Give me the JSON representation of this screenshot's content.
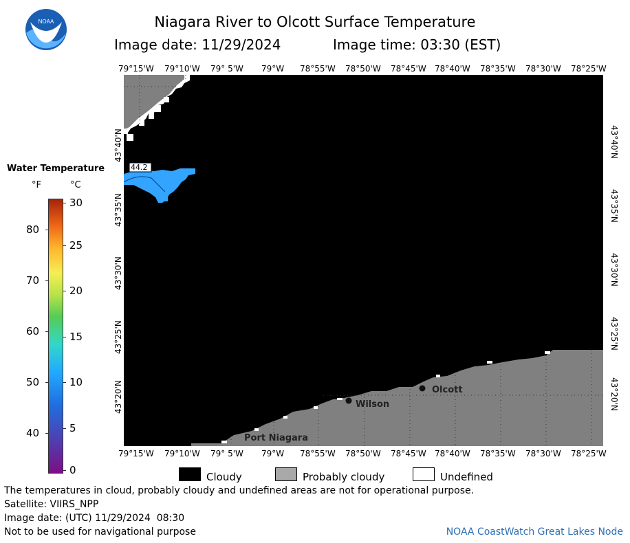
{
  "header": {
    "title": "Niagara River to Olcott Surface Temperature",
    "image_date_label": "Image date: 11/29/2024",
    "image_time_label": "Image time: 03:30 (EST)",
    "logo_text": "NOAA"
  },
  "map": {
    "lon_labels": [
      "79°15'W",
      "79°10'W",
      "79° 5'W",
      "79°W",
      "78°55'W",
      "78°50'W",
      "78°45'W",
      "78°40'W",
      "78°35'W",
      "78°30'W",
      "78°25'W"
    ],
    "lat_labels": [
      "43°40'N",
      "43°35'N",
      "43°30'N",
      "43°25'N",
      "43°20'N"
    ],
    "places": [
      {
        "name": "Olcott"
      },
      {
        "name": "Wilson"
      },
      {
        "name": "Port Niagara"
      }
    ],
    "temperature_label": "44.2",
    "colors": {
      "cloudy": "#000000",
      "probably_cloudy": "#808080",
      "undefined": "#ffffff",
      "water": "#33a4ff"
    }
  },
  "legend": {
    "title": "Water Temperature",
    "unit_f": "°F",
    "unit_c": "°C",
    "f_ticks": [
      "80",
      "70",
      "60",
      "50",
      "40"
    ],
    "c_ticks": [
      "30",
      "25",
      "20",
      "15",
      "10",
      "5",
      "0"
    ]
  },
  "key": {
    "cloudy": "Cloudy",
    "probably_cloudy": "Probably cloudy",
    "undefined": "Undefined"
  },
  "notes": {
    "line1": "The temperatures in cloud, probably cloudy and undefined areas are not for operational purpose.",
    "line2": "Satellite: VIIRS_NPP",
    "line3": "Image date: (UTC) 11/29/2024  08:30",
    "line4": "Not to be used for navigational purpose",
    "credit": "NOAA CoastWatch Great Lakes Node"
  }
}
